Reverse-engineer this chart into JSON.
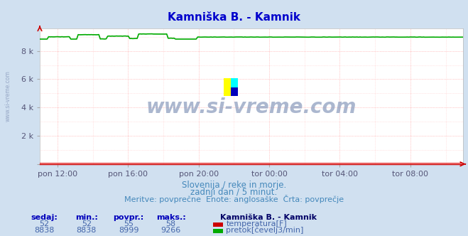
{
  "title": "Kamniška B. - Kamnik",
  "title_color": "#0000cc",
  "bg_color": "#d0e0f0",
  "plot_bg_color": "#ffffff",
  "grid_color_major": "#ff9999",
  "grid_color_minor": "#ffcccc",
  "x_tick_labels": [
    "pon 12:00",
    "pon 16:00",
    "pon 20:00",
    "tor 00:00",
    "tor 04:00",
    "tor 08:00"
  ],
  "x_tick_positions": [
    0.0416,
    0.2083,
    0.375,
    0.5416,
    0.7083,
    0.875
  ],
  "y_ticks": [
    0,
    2000,
    4000,
    6000,
    8000
  ],
  "y_tick_labels": [
    "",
    "2 k",
    "4 k",
    "6 k",
    "8 k"
  ],
  "ylim": [
    0,
    9600
  ],
  "line1_color": "#dd0000",
  "line2_color": "#00aa00",
  "watermark_text": "www.si-vreme.com",
  "watermark_color": "#8899bb",
  "subtitle1": "Slovenija / reke in morje.",
  "subtitle2": "zadnji dan / 5 minut.",
  "subtitle3": "Meritve: povprečne  Enote: anglosaške  Črta: povprečje",
  "subtitle_color": "#4488bb",
  "footer_label_color": "#0000bb",
  "footer_value_color": "#4466aa",
  "station_color": "#000066",
  "temp_sedaj": 52,
  "temp_min": 52,
  "temp_povpr": 55,
  "temp_maks": 58,
  "flow_sedaj": 8838,
  "flow_min": 8838,
  "flow_povpr": 8999,
  "flow_maks": 9266,
  "n_points": 288,
  "left_label": "www.si-vreme.com",
  "left_label_color": "#8899bb",
  "flow_base": 9000,
  "temp_base": 52
}
